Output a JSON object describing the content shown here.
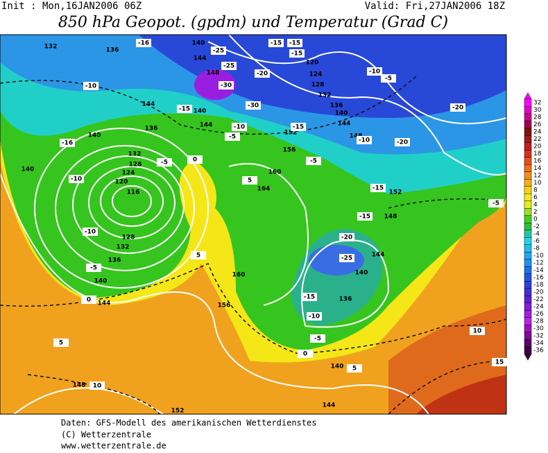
{
  "header": {
    "init": "Init : Mon,16JAN2006 06Z",
    "valid": "Valid: Fri,27JAN2006 18Z",
    "title": "850 hPa Geopot. (gpdm) und Temperatur (Grad C)"
  },
  "colorbar": {
    "labels": [
      32,
      30,
      28,
      26,
      24,
      22,
      20,
      18,
      16,
      14,
      12,
      10,
      8,
      6,
      4,
      2,
      0,
      -2,
      -4,
      -6,
      -8,
      -10,
      -12,
      -14,
      -16,
      -18,
      -20,
      -22,
      -24,
      -26,
      -28,
      -30,
      -32,
      -34,
      -36
    ]
  },
  "map": {
    "contour_labels": [
      "132",
      "136",
      "140",
      "144",
      "148",
      "120",
      "124",
      "128",
      "132",
      "136",
      "140",
      "144",
      "148",
      "152",
      "156",
      "160",
      "164",
      "144",
      "140",
      "144",
      "136",
      "140",
      "132",
      "128",
      "124",
      "120",
      "116",
      "128",
      "132",
      "136",
      "140",
      "144",
      "140",
      "160",
      "156",
      "152",
      "148",
      "144",
      "140",
      "136",
      "140",
      "144",
      "148",
      "152",
      "-16",
      "-25",
      "-25",
      "-30",
      "-30",
      "-15",
      "-15",
      "-15",
      "-20",
      "-10",
      "-5",
      "-10",
      "-15",
      "-10",
      "-15",
      "-10",
      "-5",
      "-16",
      "-20",
      "-20",
      "-5",
      "0",
      "-5",
      "-10",
      "5",
      "-15",
      "-5",
      "-15",
      "-20",
      "-25",
      "-10",
      "-5",
      "5",
      "0",
      "-15",
      "-10",
      "-5",
      "0",
      "5",
      "5",
      "10",
      "10",
      "15"
    ]
  },
  "footer": [
    "Daten: GFS-Modell des amerikanischen Wetterdienstes",
    "(C) Wetterzentrale",
    "www.wetterzentrale.de"
  ]
}
